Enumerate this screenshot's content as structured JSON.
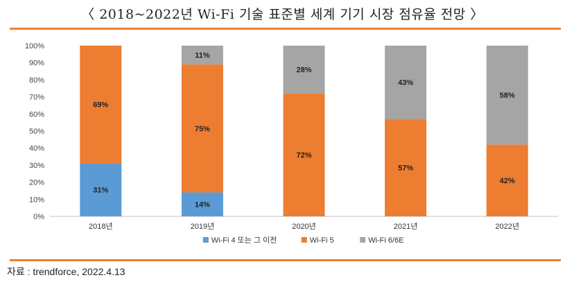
{
  "title": "〈 2018~2022년 Wi-Fi 기술 표준별 세계 기기 시장 점유율 전망 〉",
  "source": "자료 : trendforce, 2022.4.13",
  "colors": {
    "accent": "#ED7D31",
    "wifi4": "#5B9BD5",
    "wifi5": "#ED7D31",
    "wifi6": "#A5A5A5"
  },
  "chart_data": {
    "type": "bar",
    "stacked": true,
    "title": "2018~2022년 Wi-Fi 기술 표준별 세계 기기 시장 점유율 전망",
    "categories": [
      "2018년",
      "2019년",
      "2020년",
      "2021년",
      "2022년"
    ],
    "series": [
      {
        "name": "Wi-Fi 4 또는 그 이전",
        "color": "#5B9BD5",
        "values": [
          31,
          14,
          0,
          0,
          0
        ],
        "labels": [
          "31%",
          "14%",
          "",
          "",
          ""
        ]
      },
      {
        "name": "Wi-Fi 5",
        "color": "#ED7D31",
        "values": [
          69,
          75,
          72,
          57,
          42
        ],
        "labels": [
          "69%",
          "75%",
          "72%",
          "57%",
          "42%"
        ]
      },
      {
        "name": "Wi-Fi 6/6E",
        "color": "#A5A5A5",
        "values": [
          0,
          11,
          28,
          43,
          58
        ],
        "labels": [
          "",
          "11%",
          "28%",
          "43%",
          "58%"
        ]
      }
    ],
    "ylim": [
      0,
      100
    ],
    "yticks": [
      "0%",
      "10%",
      "20%",
      "30%",
      "40%",
      "50%",
      "60%",
      "70%",
      "80%",
      "90%",
      "100%"
    ],
    "grid": false,
    "legend": "bottom"
  }
}
